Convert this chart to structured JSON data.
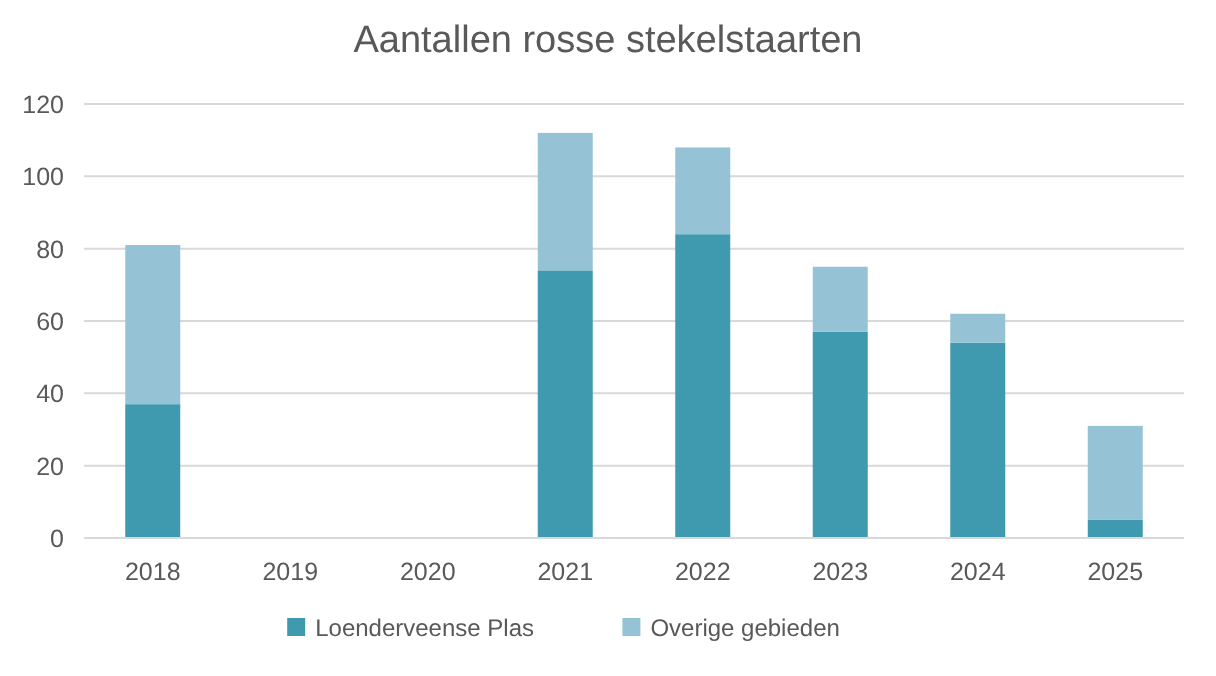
{
  "chart_data": {
    "type": "bar",
    "title": "Aantallen rosse stekelstaarten",
    "categories": [
      "2018",
      "2019",
      "2020",
      "2021",
      "2022",
      "2023",
      "2024",
      "2025"
    ],
    "stacked": true,
    "series": [
      {
        "name": "Loenderveense Plas",
        "color": "#3f9ab0",
        "values": [
          37,
          null,
          null,
          74,
          84,
          57,
          54,
          5
        ]
      },
      {
        "name": "Overige gebieden",
        "color": "#95c3d5",
        "values": [
          44,
          null,
          null,
          38,
          24,
          18,
          8,
          26
        ]
      }
    ],
    "ylim": [
      0,
      120
    ],
    "yticks": [
      0,
      20,
      40,
      60,
      80,
      100,
      120
    ],
    "grid": "y",
    "legend": "bottom"
  }
}
